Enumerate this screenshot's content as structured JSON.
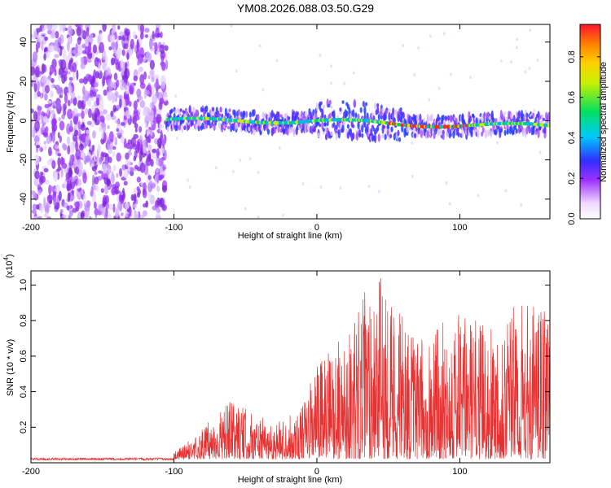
{
  "title": "YM08.2026.088.03.50.G29",
  "chart_data": [
    {
      "type": "heatmap",
      "title": "YM08.2026.088.03.50.G29",
      "xlabel": "Height of straight line (km)",
      "ylabel": "Frequency (Hz)",
      "xlim": [
        -200,
        163
      ],
      "ylim": [
        -50,
        49
      ],
      "xticks": [
        -200,
        -100,
        0,
        100
      ],
      "yticks": [
        -40,
        -20,
        0,
        20,
        40
      ],
      "colorbar": {
        "label": "Normalized spectral amplitude",
        "range": [
          0,
          0.96
        ],
        "ticks": [
          "0.0",
          "0.2",
          "0.4",
          "0.6",
          "0.8"
        ],
        "colormap": "rainbow (white-purple-blue-cyan-green-yellow-red)"
      },
      "description_points": [
        {
          "x": -105,
          "freq_center": 0,
          "amp": 0.45
        },
        {
          "x": 3,
          "freq_center": 0,
          "amp": 0.55
        },
        {
          "x": 57,
          "freq_center": -2,
          "amp": 0.95
        },
        {
          "x": 103,
          "freq_center": -2,
          "amp": 0.95
        },
        {
          "x": 160,
          "freq_center": -3,
          "amp": 0.4
        }
      ]
    },
    {
      "type": "line",
      "xlabel": "Height of straight line (km)",
      "ylabel": "SNR (10 * v/v)",
      "yscale_label": "(x10",
      "yscale_exp": "4",
      "xlim": [
        -200,
        163
      ],
      "ylim": [
        0,
        1.08
      ],
      "xticks": [
        -200,
        -100,
        0,
        100
      ],
      "yticks": [
        "0.2",
        "0.4",
        "0.6",
        "0.8",
        "1.0"
      ],
      "series": [
        {
          "name": "SNR",
          "color": "#e83030",
          "envelope": [
            {
              "x": -200,
              "y": 0.03
            },
            {
              "x": -100,
              "y": 0.04
            },
            {
              "x": -90,
              "y": 0.1
            },
            {
              "x": -60,
              "y": 0.33
            },
            {
              "x": -30,
              "y": 0.2
            },
            {
              "x": -10,
              "y": 0.3
            },
            {
              "x": 0,
              "y": 0.55
            },
            {
              "x": 20,
              "y": 0.7
            },
            {
              "x": 40,
              "y": 1.07
            },
            {
              "x": 50,
              "y": 1.0
            },
            {
              "x": 70,
              "y": 0.65
            },
            {
              "x": 95,
              "y": 0.85
            },
            {
              "x": 120,
              "y": 0.75
            },
            {
              "x": 130,
              "y": 0.88
            },
            {
              "x": 163,
              "y": 0.85
            }
          ]
        }
      ]
    }
  ]
}
